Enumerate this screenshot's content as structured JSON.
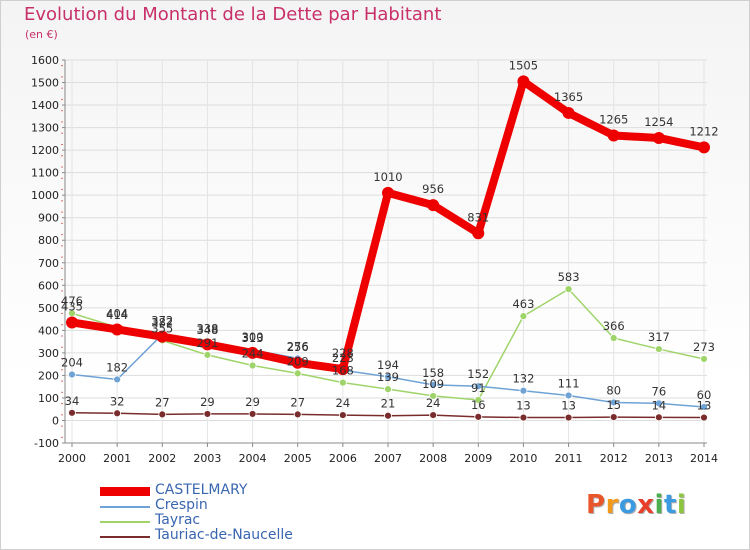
{
  "title": "Evolution du Montant de la Dette par Habitant",
  "unit_label": "(en €)",
  "logo_text": "Proxiti",
  "logo_colors": [
    "#e8562a",
    "#f29a1d",
    "#3c9be0",
    "#e83e2a",
    "#4cae4c",
    "#3c9be0",
    "#8cc63f"
  ],
  "chart_data": {
    "type": "line",
    "categories": [
      "2000",
      "2001",
      "2002",
      "2003",
      "2004",
      "2005",
      "2006",
      "2007",
      "2008",
      "2009",
      "2010",
      "2011",
      "2012",
      "2013",
      "2014"
    ],
    "ylim": [
      -100,
      1600
    ],
    "yticks": [
      "-100",
      "0",
      "100",
      "200",
      "300",
      "400",
      "500",
      "600",
      "700",
      "800",
      "900",
      "1000",
      "1100",
      "1200",
      "1300",
      "1400",
      "1500",
      "1600"
    ],
    "grid": true,
    "legend_position": "bottom-left",
    "series": [
      {
        "name": "CASTELMARY",
        "color": "#ee0000",
        "width": 8,
        "marker": 6,
        "values": [
          435,
          404,
          372,
          338,
          300,
          256,
          228,
          1010,
          956,
          831,
          1505,
          1365,
          1265,
          1254,
          1212
        ],
        "labels": [
          "435",
          "404",
          "372",
          "338",
          "300",
          "256",
          "228",
          "1010",
          "956",
          "831",
          "1505",
          "1365",
          "1265",
          "1254",
          "1212"
        ]
      },
      {
        "name": "Crespin",
        "color": "#6fa3d6",
        "width": 1.5,
        "marker": 3.5,
        "values": [
          204,
          182,
          382,
          348,
          313,
          276,
          223,
          194,
          158,
          152,
          132,
          111,
          80,
          76,
          60
        ],
        "labels": [
          "204",
          "182",
          "382",
          "348",
          "313",
          "276",
          "223",
          "194",
          "158",
          "152",
          "132",
          "111",
          "80",
          "76",
          "60"
        ]
      },
      {
        "name": "Tayrac",
        "color": "#9fd46a",
        "width": 1.5,
        "marker": 3.5,
        "values": [
          476,
          414,
          355,
          291,
          244,
          209,
          168,
          139,
          109,
          91,
          463,
          583,
          366,
          317,
          273
        ],
        "labels": [
          "476",
          "414",
          "355",
          "291",
          "244",
          "209",
          "168",
          "139",
          "109",
          "91",
          "463",
          "583",
          "366",
          "317",
          "273"
        ]
      },
      {
        "name": "Tauriac-de-Naucelle",
        "color": "#7a2c2c",
        "width": 1.5,
        "marker": 3.5,
        "values": [
          34,
          32,
          27,
          29,
          29,
          27,
          24,
          21,
          24,
          16,
          13,
          13,
          15,
          14,
          13
        ],
        "labels": [
          "34",
          "32",
          "27",
          "29",
          "29",
          "27",
          "24",
          "21",
          "24",
          "16",
          "13",
          "13",
          "15",
          "14",
          "13"
        ]
      }
    ]
  }
}
